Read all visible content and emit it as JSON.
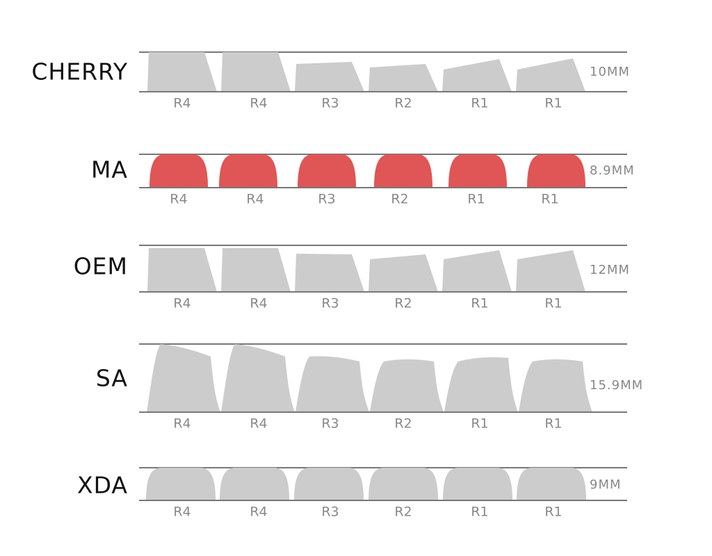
{
  "profiles": [
    {
      "name": "CHERRY",
      "height": "10MM",
      "color": "#cccccc",
      "rows": [
        "R4",
        "R4",
        "R3",
        "R2",
        "R1",
        "R1"
      ]
    },
    {
      "name": "MA",
      "height": "8.9MM",
      "color": "#e05555",
      "rows": [
        "R4",
        "R4",
        "R3",
        "R2",
        "R1",
        "R1"
      ]
    },
    {
      "name": "OEM",
      "height": "12MM",
      "color": "#cccccc",
      "rows": [
        "R4",
        "R4",
        "R3",
        "R2",
        "R1",
        "R1"
      ]
    },
    {
      "name": "SA",
      "height": "15.9MM",
      "color": "#cccccc",
      "rows": [
        "R4",
        "R4",
        "R3",
        "R2",
        "R1",
        "R1"
      ]
    },
    {
      "name": "XDA",
      "height": "9MM",
      "color": "#cccccc",
      "rows": [
        "R4",
        "R4",
        "R3",
        "R2",
        "R1",
        "R1"
      ]
    }
  ]
}
